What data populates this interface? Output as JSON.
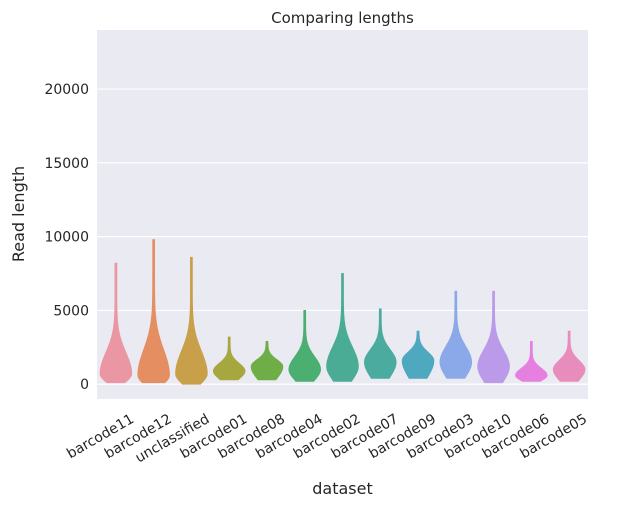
{
  "chart_data": {
    "type": "violin",
    "title": "Comparing lengths",
    "xlabel": "dataset",
    "ylabel": "Read length",
    "ylim": [
      -1000,
      24000
    ],
    "yticks": [
      0,
      5000,
      10000,
      15000,
      20000
    ],
    "grid": true,
    "categories": [
      "barcode11",
      "barcode12",
      "unclassified",
      "barcode01",
      "barcode08",
      "barcode04",
      "barcode02",
      "barcode07",
      "barcode09",
      "barcode03",
      "barcode10",
      "barcode06",
      "barcode05"
    ],
    "series": [
      {
        "min": 100,
        "max": 8200,
        "mode": 700,
        "color": "#ea96a3"
      },
      {
        "min": 100,
        "max": 9800,
        "mode": 600,
        "color": "#e58e62"
      },
      {
        "min": 0,
        "max": 8600,
        "mode": 700,
        "color": "#c8a04a"
      },
      {
        "min": 300,
        "max": 3200,
        "mode": 900,
        "color": "#a6a83f"
      },
      {
        "min": 300,
        "max": 2900,
        "mode": 1200,
        "color": "#6fae47"
      },
      {
        "min": 200,
        "max": 5000,
        "mode": 1000,
        "color": "#4caf72"
      },
      {
        "min": 200,
        "max": 7500,
        "mode": 1200,
        "color": "#4aac95"
      },
      {
        "min": 400,
        "max": 5100,
        "mode": 1500,
        "color": "#4bab9f"
      },
      {
        "min": 400,
        "max": 3600,
        "mode": 1600,
        "color": "#4ea8c0"
      },
      {
        "min": 400,
        "max": 6300,
        "mode": 1500,
        "color": "#8ba9e8"
      },
      {
        "min": 100,
        "max": 6300,
        "mode": 1200,
        "color": "#bb9ae9"
      },
      {
        "min": 200,
        "max": 2900,
        "mode": 600,
        "color": "#e680e0"
      },
      {
        "min": 200,
        "max": 3600,
        "mode": 1000,
        "color": "#e88dbb"
      }
    ]
  }
}
